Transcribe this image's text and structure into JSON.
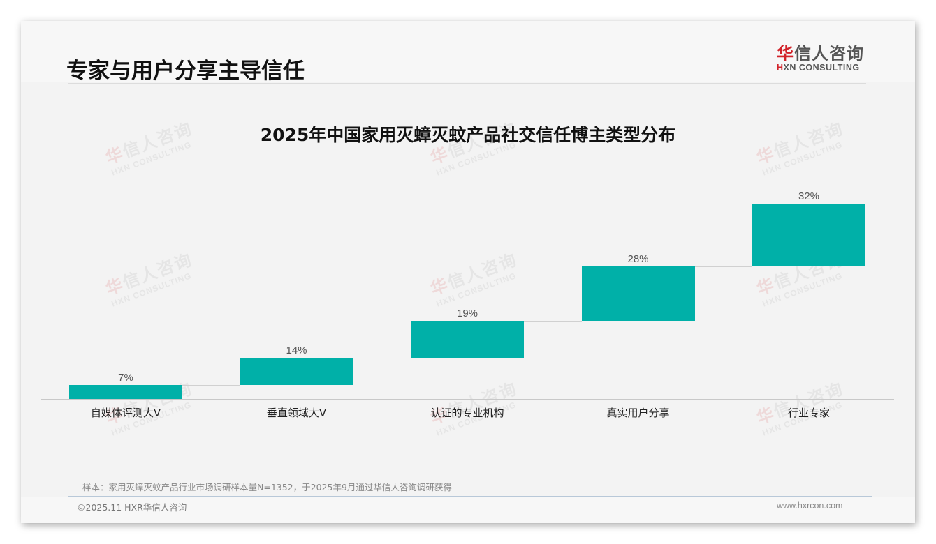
{
  "header": {
    "title": "专家与用户分享主导信任",
    "logo": {
      "cn_prefix": "华",
      "cn_rest": "信人咨询",
      "en_prefix": "H",
      "en_rest": "XN CONSULTING",
      "accent_color": "#d2232a"
    }
  },
  "watermark": {
    "cn_prefix": "华",
    "cn_rest": "信人咨询",
    "en": "HXN CONSULTING"
  },
  "chart_data": {
    "type": "bar",
    "subtype": "waterfall",
    "title": "2025年中国家用灭蟑灭蚊产品社交信任博主类型分布",
    "categories": [
      "自媒体评测大V",
      "垂直领域大V",
      "认证的专业机构",
      "真实用户分享",
      "行业专家"
    ],
    "values": [
      7,
      14,
      19,
      28,
      32
    ],
    "labels": [
      "7%",
      "14%",
      "19%",
      "28%",
      "32%"
    ],
    "unit": "%",
    "xlabel": "",
    "ylabel": "",
    "ylim": [
      0,
      100
    ],
    "grid": false,
    "legend": null,
    "bar_color": "#00b0a8"
  },
  "footer": {
    "source_note": "样本：家用灭蟑灭蚊产品行业市场调研样本量N=1352，于2025年9月通过华信人咨询调研获得",
    "copyright": "©2025.11 HXR华信人咨询",
    "website": "www.hxrcon.com"
  }
}
